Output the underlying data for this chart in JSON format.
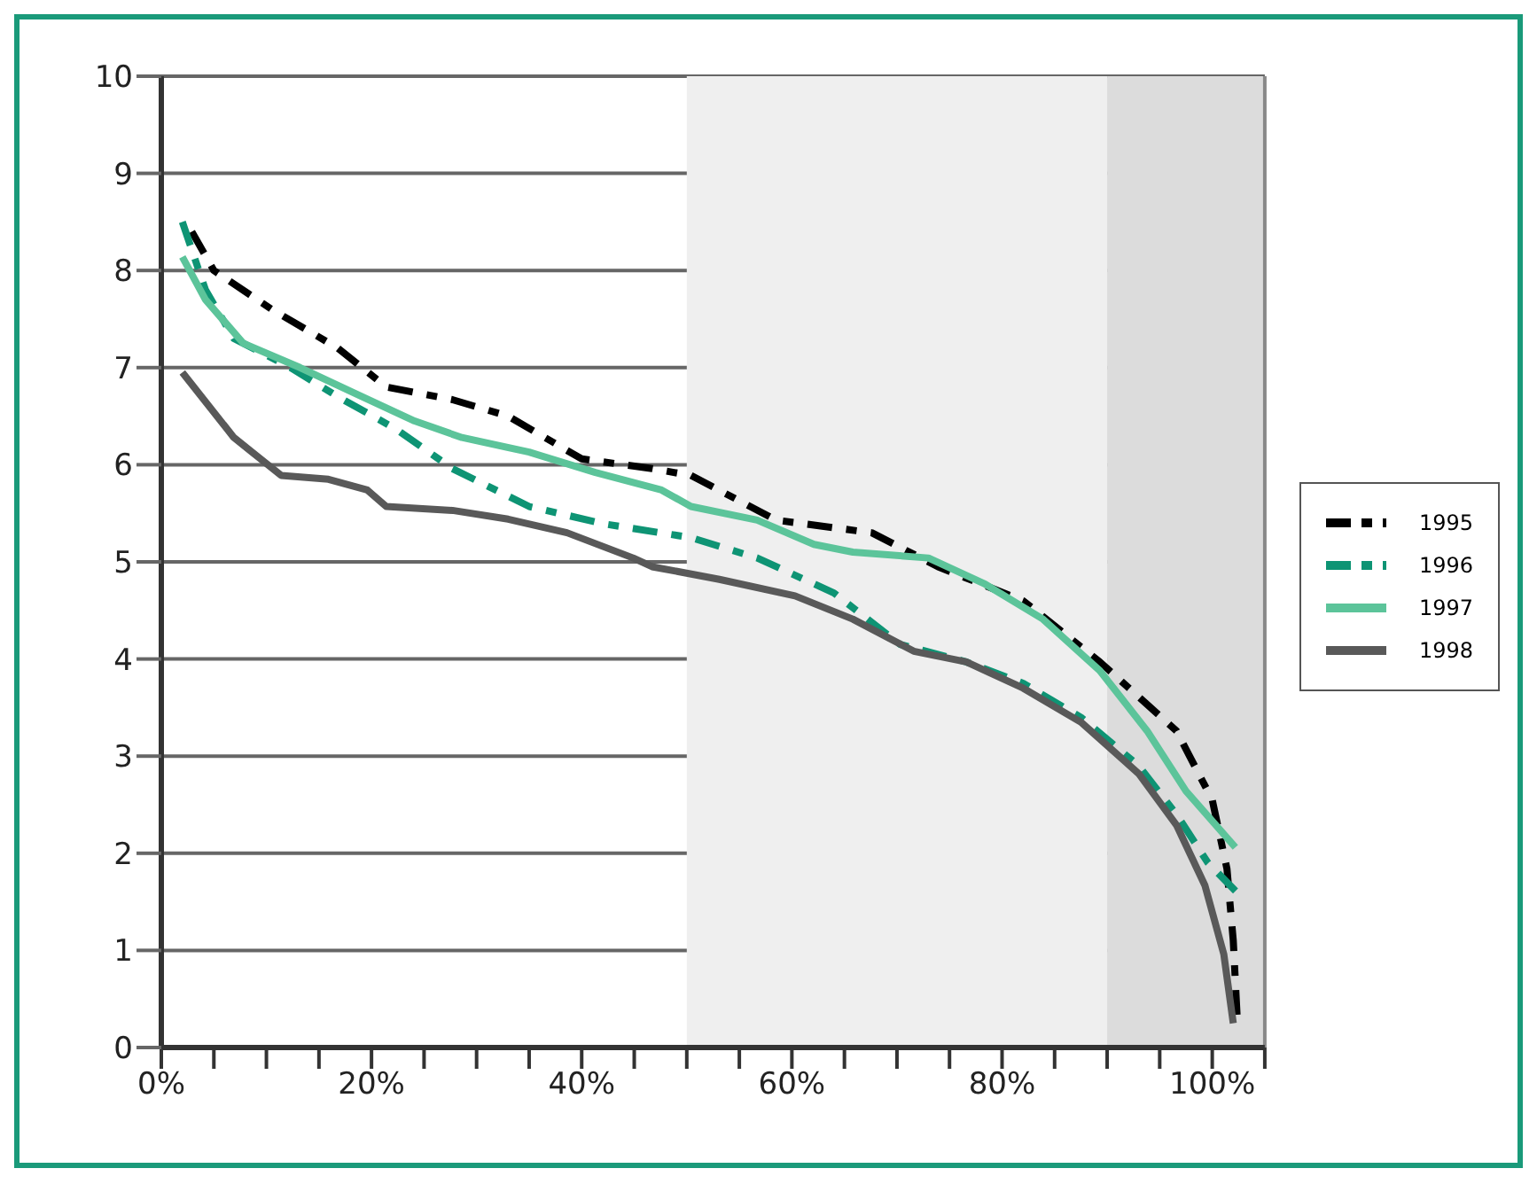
{
  "chart_data": {
    "type": "line",
    "xlim": [
      0,
      105
    ],
    "xticks": [
      {
        "value": 0,
        "label": "0%"
      },
      {
        "value": 5,
        "label": null
      },
      {
        "value": 10,
        "label": null
      },
      {
        "value": 15,
        "label": null
      },
      {
        "value": 20,
        "label": "20%"
      },
      {
        "value": 25,
        "label": null
      },
      {
        "value": 30,
        "label": null
      },
      {
        "value": 35,
        "label": null
      },
      {
        "value": 40,
        "label": "40%"
      },
      {
        "value": 45,
        "label": null
      },
      {
        "value": 50,
        "label": null
      },
      {
        "value": 55,
        "label": null
      },
      {
        "value": 60,
        "label": "60%"
      },
      {
        "value": 65,
        "label": null
      },
      {
        "value": 70,
        "label": null
      },
      {
        "value": 75,
        "label": null
      },
      {
        "value": 80,
        "label": "80%"
      },
      {
        "value": 85,
        "label": null
      },
      {
        "value": 90,
        "label": null
      },
      {
        "value": 95,
        "label": null
      },
      {
        "value": 100,
        "label": "100%"
      },
      {
        "value": 105,
        "label": null
      }
    ],
    "ylim": [
      0,
      10
    ],
    "yticks": [
      0,
      1,
      2,
      3,
      4,
      5,
      6,
      7,
      8,
      9,
      10
    ],
    "grid": "y",
    "legend": "right",
    "marker": "none",
    "bands": [
      {
        "axis": "x",
        "from": 50,
        "to": 90,
        "color": "#efefef"
      },
      {
        "axis": "x",
        "from": 90,
        "to": 105,
        "color": "#dcdcdc"
      }
    ],
    "series": [
      {
        "name": "1995",
        "color": "#000000",
        "line_style": "dashed",
        "x": [
          2.9,
          5,
          10.5,
          16.8,
          21.4,
          27.7,
          33,
          40,
          46.7,
          50.4,
          58.5,
          67.6,
          73.9,
          82,
          89.3,
          96.6,
          100,
          101.4,
          102,
          102.4
        ],
        "values": [
          8.4,
          8.0,
          7.6,
          7.2,
          6.8,
          6.67,
          6.5,
          6.06,
          5.96,
          5.89,
          5.43,
          5.3,
          4.95,
          4.6,
          3.97,
          3.26,
          2.55,
          1.84,
          1.1,
          0.25
        ]
      },
      {
        "name": "1996",
        "color": "#0e9474",
        "line_style": "dashed",
        "x": [
          2,
          4.2,
          6.9,
          12.3,
          16.8,
          22.3,
          27.7,
          35,
          42.2,
          50.4,
          56.7,
          64,
          70.3,
          76.6,
          82,
          87.5,
          93,
          96.6,
          99.6,
          102.5
        ],
        "values": [
          8.5,
          7.8,
          7.3,
          7.0,
          6.7,
          6.37,
          5.96,
          5.57,
          5.39,
          5.25,
          5.04,
          4.68,
          4.15,
          3.97,
          3.75,
          3.4,
          2.9,
          2.4,
          1.9,
          1.58
        ]
      },
      {
        "name": "1997",
        "color": "#5cc49a",
        "line_style": "solid",
        "x": [
          2,
          4.2,
          7.8,
          13.2,
          18.7,
          24.1,
          28.6,
          35,
          41.3,
          47.6,
          50.4,
          56.7,
          62.1,
          65.8,
          73,
          78.4,
          83.9,
          89.3,
          93.8,
          97.5,
          102.2
        ],
        "values": [
          8.14,
          7.7,
          7.25,
          7.0,
          6.72,
          6.45,
          6.28,
          6.13,
          5.92,
          5.74,
          5.57,
          5.43,
          5.18,
          5.1,
          5.04,
          4.77,
          4.41,
          3.88,
          3.26,
          2.64,
          2.06
        ]
      },
      {
        "name": "1998",
        "color": "#595959",
        "line_style": "solid",
        "x": [
          2,
          6.9,
          11.4,
          15.9,
          19.6,
          21.4,
          27.7,
          33,
          38.6,
          44.9,
          46.7,
          53.1,
          60.3,
          65.8,
          71.6,
          76.6,
          82,
          87.5,
          93,
          96.6,
          99.3,
          101.1,
          102
        ],
        "values": [
          6.95,
          6.28,
          5.89,
          5.85,
          5.74,
          5.57,
          5.53,
          5.44,
          5.3,
          5.04,
          4.95,
          4.82,
          4.65,
          4.41,
          4.08,
          3.97,
          3.7,
          3.35,
          2.82,
          2.29,
          1.67,
          0.96,
          0.25
        ]
      }
    ]
  }
}
